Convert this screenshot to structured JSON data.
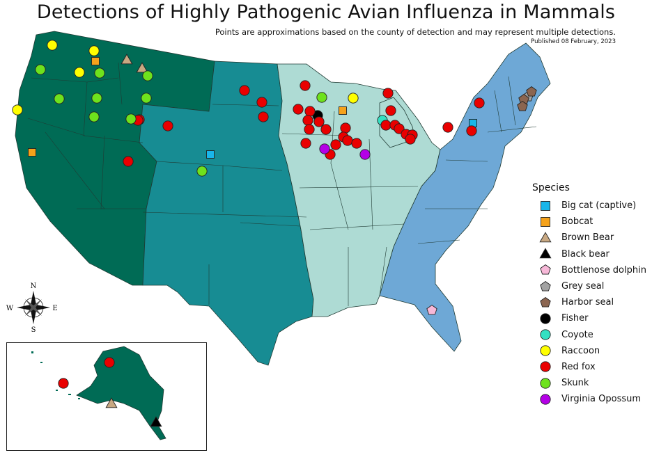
{
  "title": "Detections of Highly Pathogenic Avian Influenza in Mammals",
  "subtitle": "Points are approximations based on the county of detection and may represent multiple detections.",
  "published": "Published 08 February, 2023",
  "legend": {
    "title": "Species",
    "items": [
      {
        "label": "Big cat (captive)",
        "shape": "square",
        "color": "#19b6ea"
      },
      {
        "label": "Bobcat",
        "shape": "square",
        "color": "#f5a21b"
      },
      {
        "label": "Brown Bear",
        "shape": "triangle",
        "color": "#c8a882"
      },
      {
        "label": "Black bear",
        "shape": "triangle",
        "color": "#000000"
      },
      {
        "label": "Bottlenose dolphin",
        "shape": "pentagon",
        "color": "#f7b8d8"
      },
      {
        "label": "Grey seal",
        "shape": "pentagon",
        "color": "#a3a3a3"
      },
      {
        "label": "Harbor seal",
        "shape": "pentagon",
        "color": "#8b6550"
      },
      {
        "label": "Fisher",
        "shape": "circle",
        "color": "#000000"
      },
      {
        "label": "Coyote",
        "shape": "circle",
        "color": "#33e0c2"
      },
      {
        "label": "Raccoon",
        "shape": "circle",
        "color": "#ffff00"
      },
      {
        "label": "Red fox",
        "shape": "circle",
        "color": "#e90000"
      },
      {
        "label": "Skunk",
        "shape": "circle",
        "color": "#6ee21d"
      },
      {
        "label": "Virginia Opossum",
        "shape": "circle",
        "color": "#b400e6"
      }
    ]
  },
  "compass": {
    "n": "N",
    "s": "S",
    "e": "E",
    "w": "W"
  },
  "region_colors": {
    "west": "#006b55",
    "central": "#178c93",
    "midwest_south": "#aedbd4",
    "east": "#6ea8d6"
  }
}
